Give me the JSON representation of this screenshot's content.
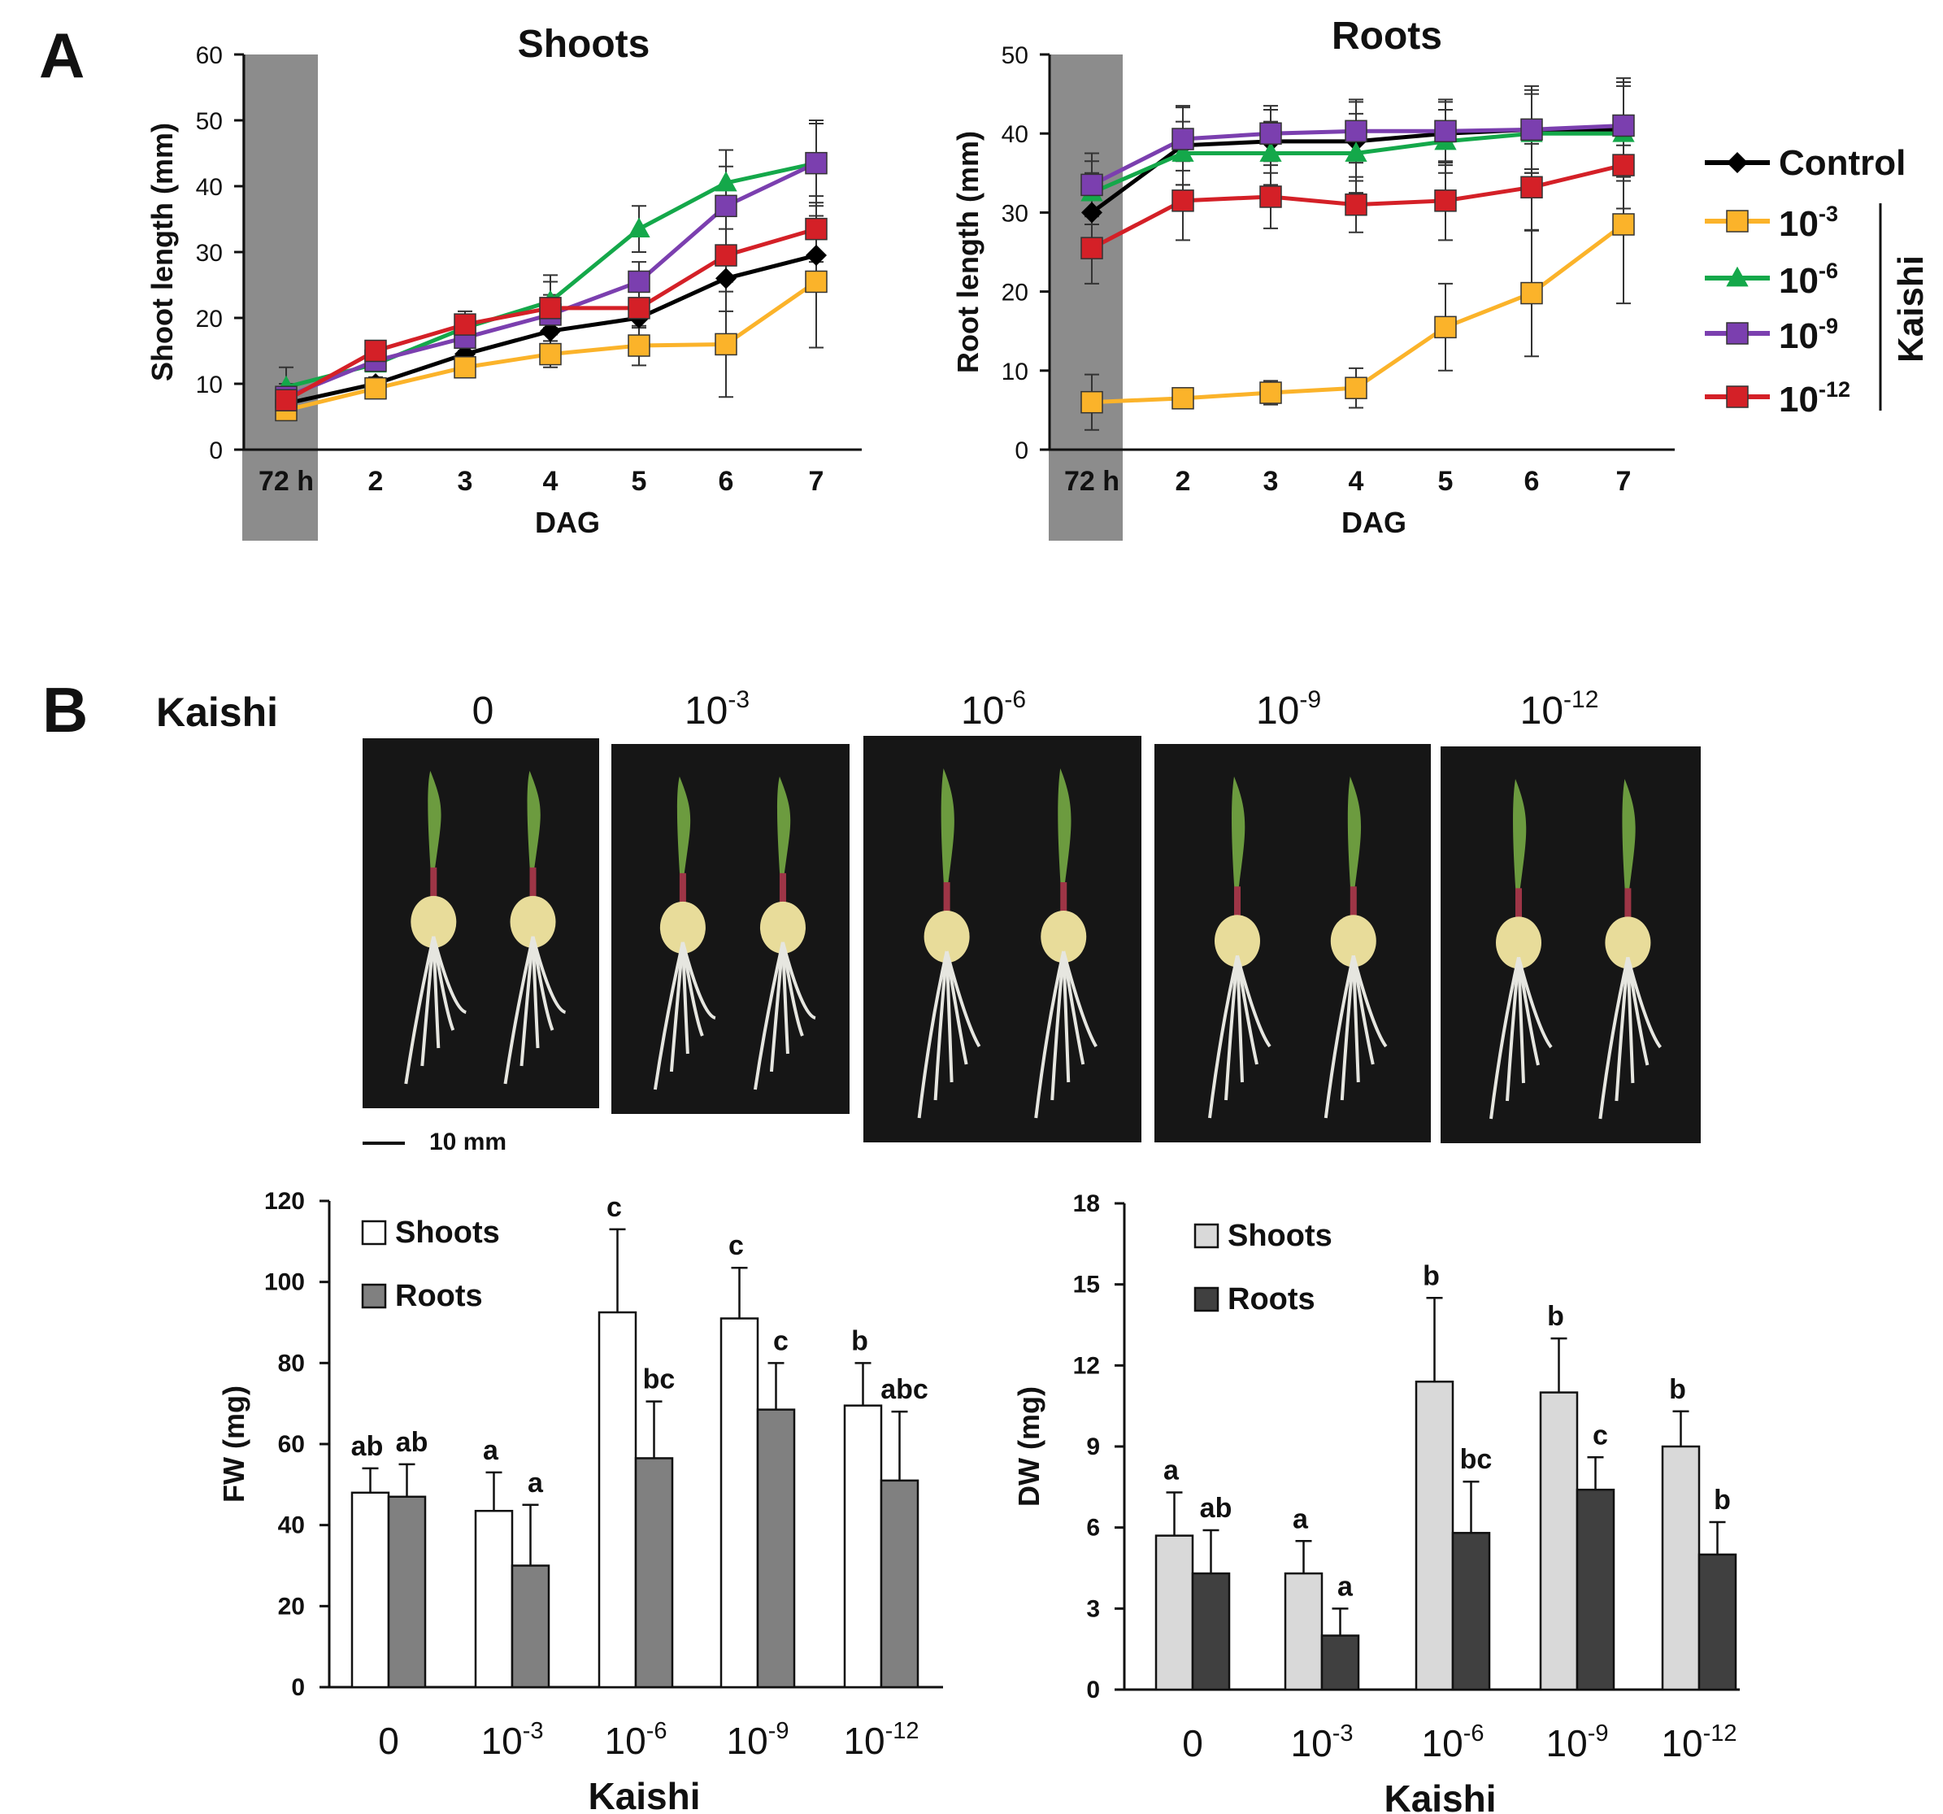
{
  "panel_letters": [
    "A",
    "B"
  ],
  "chart_data": [
    {
      "type": "line",
      "title": "Shoots",
      "xlabel": "DAG",
      "ylabel": "Shoot length (mm)",
      "x_ticks": [
        "72 h",
        "2",
        "3",
        "4",
        "5",
        "6",
        "7"
      ],
      "ylim": [
        0,
        60
      ],
      "y_ticks": [
        "0",
        "10",
        "20",
        "30",
        "40",
        "50",
        "60"
      ],
      "shaded_region_label": "72 h",
      "series": [
        {
          "name": "Control",
          "color": "#000000",
          "marker": "diamond",
          "values": [
            7,
            10,
            14.5,
            18,
            20,
            26,
            29.5
          ],
          "errors": [
            2,
            1,
            1,
            2,
            3,
            5,
            5
          ]
        },
        {
          "name": "10-3",
          "color": "#FBB32A",
          "marker": "square",
          "values": [
            6,
            9.3,
            12.5,
            14.5,
            15.8,
            16,
            25.5
          ],
          "errors": [
            1,
            1,
            1.5,
            2,
            3,
            8,
            10
          ]
        },
        {
          "name": "10-6",
          "color": "#14A84A",
          "marker": "triangle",
          "values": [
            9.5,
            13,
            18.5,
            22.5,
            33.5,
            40.5,
            43.5
          ],
          "errors": [
            3,
            1,
            2,
            4,
            3.5,
            5,
            6
          ]
        },
        {
          "name": "10-9",
          "color": "#7B3FAF",
          "marker": "square",
          "values": [
            8,
            13.5,
            17,
            20.5,
            25.5,
            37,
            43.5
          ],
          "errors": [
            2,
            1,
            2,
            3,
            3,
            6,
            6.5
          ]
        },
        {
          "name": "10-12",
          "color": "#D42027",
          "marker": "square",
          "values": [
            7.5,
            15,
            19,
            21.5,
            21.5,
            29.5,
            33.5
          ],
          "errors": [
            2,
            1,
            2,
            4,
            3,
            4,
            5
          ]
        }
      ]
    },
    {
      "type": "line",
      "title": "Roots",
      "xlabel": "DAG",
      "ylabel": "Root length (mm)",
      "x_ticks": [
        "72 h",
        "2",
        "3",
        "4",
        "5",
        "6",
        "7"
      ],
      "ylim": [
        0,
        50
      ],
      "y_ticks": [
        "0",
        "10",
        "20",
        "30",
        "40",
        "50"
      ],
      "shaded_region_label": "72 h",
      "series": [
        {
          "name": "Control",
          "color": "#000000",
          "marker": "diamond",
          "values": [
            30,
            38.5,
            39,
            39,
            40,
            40.5,
            40.5
          ],
          "errors": [
            5,
            5,
            4,
            5,
            4,
            5,
            6
          ]
        },
        {
          "name": "10-3",
          "color": "#FBB32A",
          "marker": "square",
          "values": [
            6,
            6.5,
            7.2,
            7.8,
            15.5,
            19.8,
            28.5
          ],
          "errors": [
            3.5,
            1,
            1.5,
            2.5,
            5.5,
            8,
            10
          ]
        },
        {
          "name": "10-6",
          "color": "#14A84A",
          "marker": "triangle",
          "values": [
            32.5,
            37.5,
            37.5,
            37.5,
            39,
            40,
            40
          ],
          "errors": [
            4,
            4,
            4,
            5,
            4,
            5,
            6
          ]
        },
        {
          "name": "10-9",
          "color": "#7B3FAF",
          "marker": "square",
          "values": [
            33.5,
            39.3,
            40,
            40.3,
            40.3,
            40.5,
            41
          ],
          "errors": [
            4,
            4,
            3.5,
            4,
            4,
            5.5,
            6
          ]
        },
        {
          "name": "10-12",
          "color": "#D42027",
          "marker": "square",
          "values": [
            25.5,
            31.5,
            32,
            31,
            31.5,
            33.2,
            36
          ],
          "errors": [
            4.5,
            5,
            4,
            3.5,
            5,
            5.5,
            5.5
          ]
        }
      ]
    },
    {
      "type": "bar",
      "xlabel": "Kaishi",
      "ylabel": "FW (mg)",
      "categories": [
        "0",
        "10-3",
        "10-6",
        "10-9",
        "10-12"
      ],
      "ylim": [
        0,
        120
      ],
      "y_ticks": [
        "0",
        "20",
        "40",
        "60",
        "80",
        "100",
        "120"
      ],
      "series": [
        {
          "name": "Shoots",
          "color": "#FFFFFF",
          "values": [
            48,
            43.5,
            92.5,
            91,
            69.5
          ],
          "errors": [
            6,
            9.5,
            20.5,
            12.5,
            10.5
          ],
          "letters": [
            "ab",
            "a",
            "c",
            "c",
            "b"
          ]
        },
        {
          "name": "Roots",
          "color": "#808080",
          "values": [
            47,
            30,
            56.5,
            68.5,
            51
          ],
          "errors": [
            8,
            15,
            14,
            11.5,
            17
          ],
          "letters": [
            "ab",
            "a",
            "bc",
            "c",
            "abc"
          ]
        }
      ]
    },
    {
      "type": "bar",
      "xlabel": "Kaishi",
      "ylabel": "DW (mg)",
      "categories": [
        "0",
        "10-3",
        "10-6",
        "10-9",
        "10-12"
      ],
      "ylim": [
        0,
        18
      ],
      "y_ticks": [
        "0",
        "3",
        "6",
        "9",
        "12",
        "15",
        "18"
      ],
      "series": [
        {
          "name": "Shoots",
          "color": "#D9D9D9",
          "values": [
            5.7,
            4.3,
            11.4,
            11,
            9
          ],
          "errors": [
            1.6,
            1.2,
            3.1,
            2,
            1.3
          ],
          "letters": [
            "a",
            "a",
            "b",
            "b",
            "b"
          ]
        },
        {
          "name": "Roots",
          "color": "#404040",
          "values": [
            4.3,
            2,
            5.8,
            7.4,
            5
          ],
          "errors": [
            1.6,
            1,
            1.9,
            1.2,
            1.2
          ],
          "letters": [
            "ab",
            "a",
            "bc",
            "c",
            "b"
          ]
        }
      ]
    }
  ],
  "legend": {
    "entries": [
      {
        "label": "Control",
        "color": "#000000",
        "marker": "diamond"
      },
      {
        "label_base": "10",
        "label_exp": "-3",
        "color": "#FBB32A",
        "marker": "square"
      },
      {
        "label_base": "10",
        "label_exp": "-6",
        "color": "#14A84A",
        "marker": "triangle"
      },
      {
        "label_base": "10",
        "label_exp": "-9",
        "color": "#7B3FAF",
        "marker": "square"
      },
      {
        "label_base": "10",
        "label_exp": "-12",
        "color": "#D42027",
        "marker": "square"
      }
    ],
    "group_label": "Kaishi"
  },
  "photos": {
    "title": "Kaishi",
    "scale_bar": "10 mm",
    "panels": [
      {
        "label_base": "0",
        "label_exp": ""
      },
      {
        "label_base": "10",
        "label_exp": "-3"
      },
      {
        "label_base": "10",
        "label_exp": "-6"
      },
      {
        "label_base": "10",
        "label_exp": "-9"
      },
      {
        "label_base": "10",
        "label_exp": "-12"
      }
    ]
  }
}
